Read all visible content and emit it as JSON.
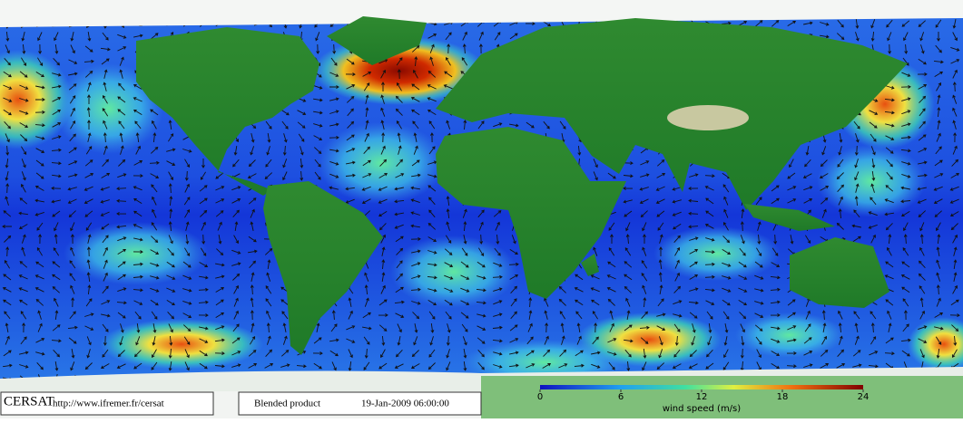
{
  "footer": {
    "logo": "CERSAT",
    "url": "http://www.ifremer.fr/cersat",
    "product": "Blended product",
    "timestamp": "19-Jan-2009 06:00:00"
  },
  "colorbar": {
    "range": [
      0,
      24
    ],
    "ticks": [
      0,
      6,
      12,
      18,
      24
    ],
    "label": "wind speed (m/s)"
  }
}
